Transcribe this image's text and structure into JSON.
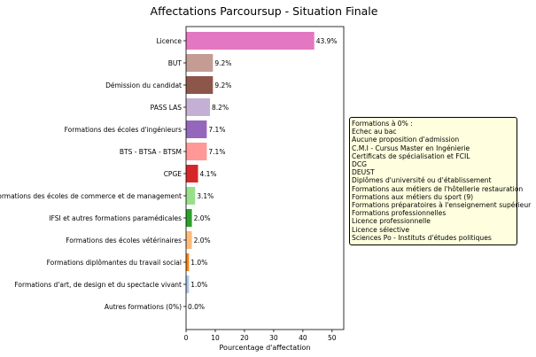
{
  "chart_data": {
    "type": "bar",
    "orientation": "horizontal",
    "title": "Affectations Parcoursup - Situation Finale",
    "xlabel": "Pourcentage d'affectation",
    "ylabel": "",
    "xlim": [
      0,
      54
    ],
    "xticks": [
      0,
      10,
      20,
      30,
      40,
      50
    ],
    "grid": false,
    "categories": [
      "Licence",
      "BUT",
      "Démission du candidat",
      "PASS LAS",
      "Formations des écoles d'ingénieurs",
      "BTS - BTSA - BTSM",
      "CPGE",
      "Formations des écoles de commerce et de management",
      "IFSI et autres formations paramédicales",
      "Formations des écoles vétérinaires",
      "Formations diplômantes du travail social",
      "Formations d'art, de design et du spectacle vivant",
      "Autres formations (0%)"
    ],
    "values": [
      43.9,
      9.2,
      9.2,
      8.2,
      7.1,
      7.1,
      4.1,
      3.1,
      2.0,
      2.0,
      1.0,
      1.0,
      0.0
    ],
    "value_labels": [
      "43.9%",
      "9.2%",
      "9.2%",
      "8.2%",
      "7.1%",
      "7.1%",
      "4.1%",
      "3.1%",
      "2.0%",
      "2.0%",
      "1.0%",
      "1.0%",
      "0.0%"
    ],
    "colors": [
      "#e377c2",
      "#c49c94",
      "#8c564b",
      "#c5b0d5",
      "#9467bd",
      "#ff9896",
      "#d62728",
      "#98df8a",
      "#2ca02c",
      "#ffbb78",
      "#ff7f0e",
      "#aec7e8",
      "#1f77b4"
    ]
  },
  "annotation": {
    "lines": [
      "Formations à 0% :",
      "Echec au bac",
      "Aucune proposition d'admission",
      "C.M.I - Cursus Master en Ingénierie",
      "Certificats de spécialisation et FCIL",
      "DCG",
      "DEUST",
      "Diplômes d'université ou d'établissement",
      "Formations aux métiers de l'hôtellerie restauration",
      "Formations aux métiers du sport (9)",
      "Formations préparatoires à l'enseignement supérieur",
      "Formations professionnelles",
      "Licence professionnelle",
      "Licence sélective",
      "Sciences Po - Instituts d'études politiques"
    ]
  }
}
